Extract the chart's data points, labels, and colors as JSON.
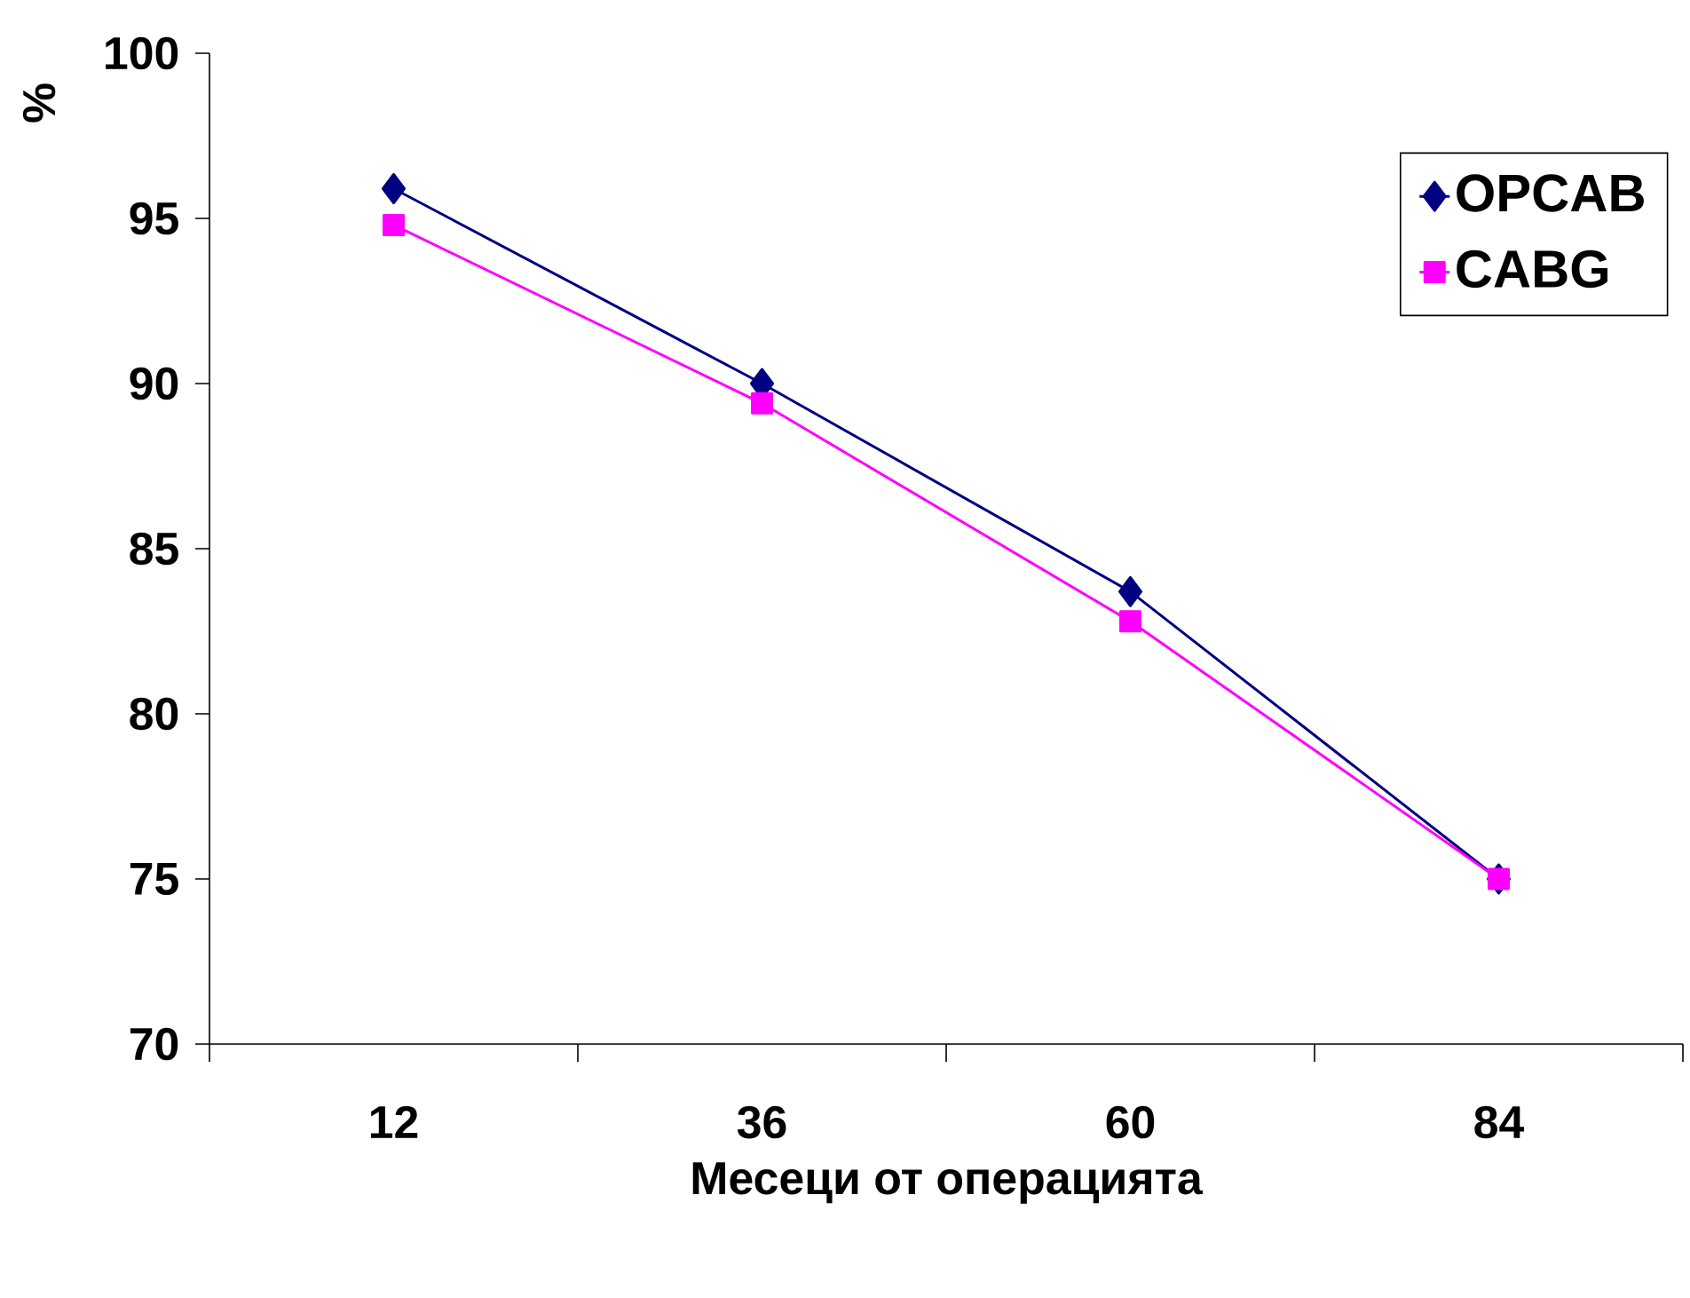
{
  "chart_data": {
    "type": "line",
    "ylabel": "%",
    "xlabel": "Месеци от операцията",
    "categories": [
      "12",
      "36",
      "60",
      "84"
    ],
    "ylim": [
      70,
      100
    ],
    "yticks": [
      70,
      75,
      80,
      85,
      90,
      95,
      100
    ],
    "grid": false,
    "legend": "right",
    "series": [
      {
        "name": "OPCAB",
        "color": "#000080",
        "marker": "diamond",
        "values": [
          95.9,
          90.0,
          83.7,
          75.0
        ]
      },
      {
        "name": "CABG",
        "color": "#ff00ff",
        "marker": "square",
        "values": [
          94.8,
          89.4,
          82.8,
          75.0
        ]
      }
    ]
  }
}
